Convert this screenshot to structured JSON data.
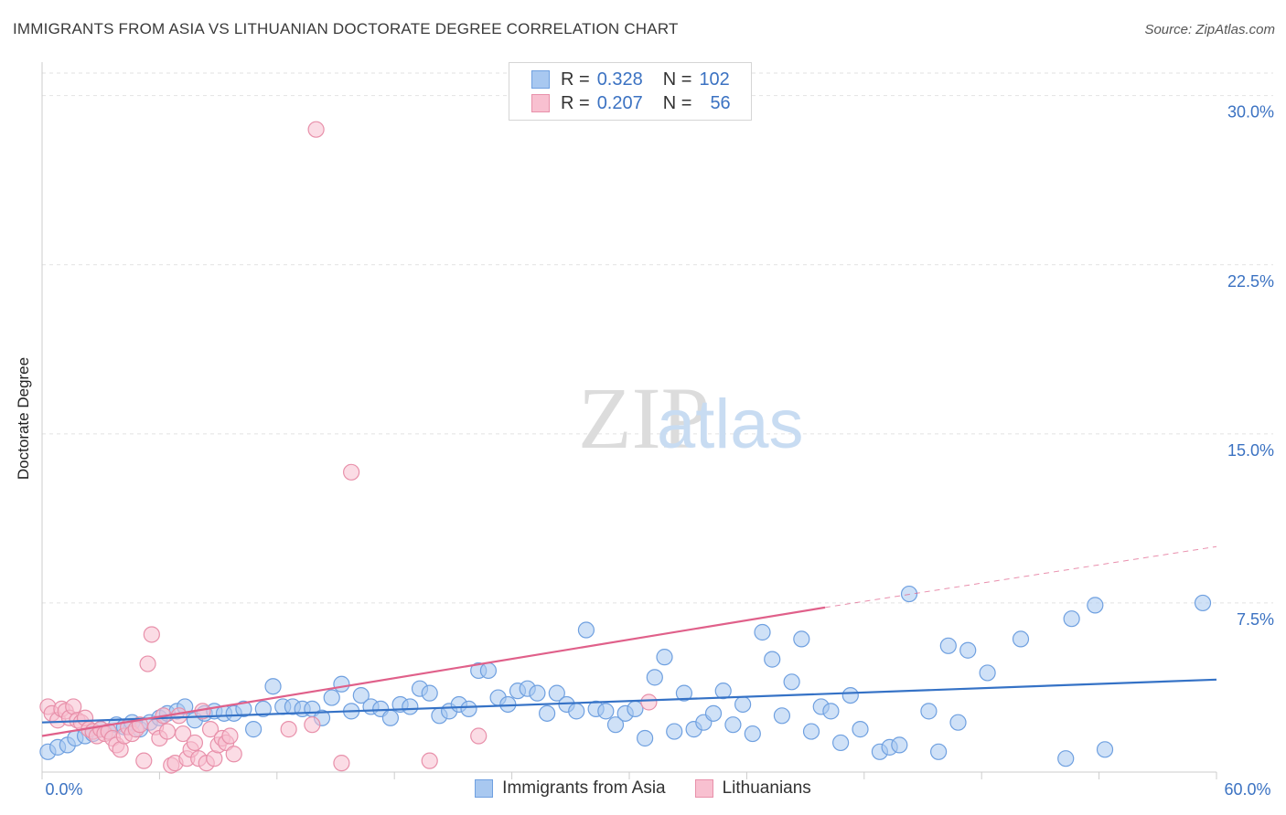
{
  "title": "IMMIGRANTS FROM ASIA VS LITHUANIAN DOCTORATE DEGREE CORRELATION CHART",
  "source": "Source: ZipAtlas.com",
  "watermark": {
    "zip": "ZIP",
    "atlas": "atlas"
  },
  "legend": {
    "r_label": "R =",
    "n_label": "N =",
    "series": [
      {
        "r": "0.328",
        "n": "102",
        "color": "#a8c8f0",
        "border": "#6fa0e0"
      },
      {
        "r": "0.207",
        "n": "56",
        "color": "#f8c0d0",
        "border": "#e890aa"
      }
    ]
  },
  "chart_data": {
    "type": "scatter",
    "title": "IMMIGRANTS FROM ASIA VS LITHUANIAN DOCTORATE DEGREE CORRELATION CHART",
    "xlabel": "",
    "ylabel": "Doctorate Degree",
    "xlim": [
      0,
      60
    ],
    "ylim": [
      0,
      31
    ],
    "x_tick_labels": [
      "0.0%",
      "60.0%"
    ],
    "y_ticks": [
      7.5,
      15.0,
      22.5,
      30.0
    ],
    "y_tick_labels": [
      "7.5%",
      "15.0%",
      "22.5%",
      "30.0%"
    ],
    "grid": true,
    "series": [
      {
        "name": "Immigrants from Asia",
        "color": "#6fa0e0",
        "fill": "#a8c8f0",
        "trend": {
          "x0": 0,
          "y0": 2.2,
          "x1": 60,
          "y1": 4.1,
          "color": "#3572c6"
        },
        "points": [
          [
            0.3,
            0.9
          ],
          [
            0.8,
            1.1
          ],
          [
            1.3,
            1.2
          ],
          [
            1.7,
            1.5
          ],
          [
            2.2,
            1.6
          ],
          [
            2.6,
            1.7
          ],
          [
            3.0,
            1.9
          ],
          [
            3.4,
            1.8
          ],
          [
            3.8,
            2.1
          ],
          [
            4.2,
            2.0
          ],
          [
            4.6,
            2.2
          ],
          [
            5.0,
            1.9
          ],
          [
            5.5,
            2.2
          ],
          [
            6.0,
            2.4
          ],
          [
            6.4,
            2.6
          ],
          [
            6.9,
            2.7
          ],
          [
            7.3,
            2.9
          ],
          [
            7.8,
            2.3
          ],
          [
            8.3,
            2.6
          ],
          [
            8.8,
            2.7
          ],
          [
            9.3,
            2.6
          ],
          [
            9.8,
            2.6
          ],
          [
            10.3,
            2.8
          ],
          [
            10.8,
            1.9
          ],
          [
            11.3,
            2.8
          ],
          [
            11.8,
            3.8
          ],
          [
            12.3,
            2.9
          ],
          [
            12.8,
            2.9
          ],
          [
            13.3,
            2.8
          ],
          [
            13.8,
            2.8
          ],
          [
            14.3,
            2.4
          ],
          [
            14.8,
            3.3
          ],
          [
            15.3,
            3.9
          ],
          [
            15.8,
            2.7
          ],
          [
            16.3,
            3.4
          ],
          [
            16.8,
            2.9
          ],
          [
            17.3,
            2.8
          ],
          [
            17.8,
            2.4
          ],
          [
            18.3,
            3.0
          ],
          [
            18.8,
            2.9
          ],
          [
            19.3,
            3.7
          ],
          [
            19.8,
            3.5
          ],
          [
            20.3,
            2.5
          ],
          [
            20.8,
            2.7
          ],
          [
            21.3,
            3.0
          ],
          [
            21.8,
            2.8
          ],
          [
            22.3,
            4.5
          ],
          [
            22.8,
            4.5
          ],
          [
            23.3,
            3.3
          ],
          [
            23.8,
            3.0
          ],
          [
            24.3,
            3.6
          ],
          [
            24.8,
            3.7
          ],
          [
            25.3,
            3.5
          ],
          [
            25.8,
            2.6
          ],
          [
            26.3,
            3.5
          ],
          [
            26.8,
            3.0
          ],
          [
            27.3,
            2.7
          ],
          [
            27.8,
            6.3
          ],
          [
            28.3,
            2.8
          ],
          [
            28.8,
            2.7
          ],
          [
            29.3,
            2.1
          ],
          [
            29.8,
            2.6
          ],
          [
            30.3,
            2.8
          ],
          [
            30.8,
            1.5
          ],
          [
            31.3,
            4.2
          ],
          [
            31.8,
            5.1
          ],
          [
            32.3,
            1.8
          ],
          [
            32.8,
            3.5
          ],
          [
            33.3,
            1.9
          ],
          [
            33.8,
            2.2
          ],
          [
            34.3,
            2.6
          ],
          [
            34.8,
            3.6
          ],
          [
            35.3,
            2.1
          ],
          [
            35.8,
            3.0
          ],
          [
            36.3,
            1.7
          ],
          [
            36.8,
            6.2
          ],
          [
            37.3,
            5.0
          ],
          [
            37.8,
            2.5
          ],
          [
            38.3,
            4.0
          ],
          [
            38.8,
            5.9
          ],
          [
            39.3,
            1.8
          ],
          [
            39.8,
            2.9
          ],
          [
            40.3,
            2.7
          ],
          [
            40.8,
            1.3
          ],
          [
            41.3,
            3.4
          ],
          [
            41.8,
            1.9
          ],
          [
            42.8,
            0.9
          ],
          [
            43.3,
            1.1
          ],
          [
            43.8,
            1.2
          ],
          [
            44.3,
            7.9
          ],
          [
            45.3,
            2.7
          ],
          [
            45.8,
            0.9
          ],
          [
            46.3,
            5.6
          ],
          [
            46.8,
            2.2
          ],
          [
            47.3,
            5.4
          ],
          [
            48.3,
            4.4
          ],
          [
            50.0,
            5.9
          ],
          [
            52.3,
            0.6
          ],
          [
            52.6,
            6.8
          ],
          [
            53.8,
            7.4
          ],
          [
            54.3,
            1.0
          ],
          [
            59.3,
            7.5
          ]
        ]
      },
      {
        "name": "Lithuanians",
        "color": "#e890aa",
        "fill": "#f8c0d0",
        "trend": {
          "x0": 0,
          "y0": 1.6,
          "x1": 40,
          "y1": 7.3,
          "x2": 60,
          "y2": 10.0,
          "color": "#e0608a"
        },
        "points": [
          [
            0.3,
            2.9
          ],
          [
            0.5,
            2.6
          ],
          [
            0.8,
            2.3
          ],
          [
            1.0,
            2.8
          ],
          [
            1.2,
            2.7
          ],
          [
            1.4,
            2.4
          ],
          [
            1.6,
            2.9
          ],
          [
            1.8,
            2.3
          ],
          [
            2.0,
            2.2
          ],
          [
            2.2,
            2.4
          ],
          [
            2.4,
            1.9
          ],
          [
            2.6,
            1.8
          ],
          [
            2.8,
            1.6
          ],
          [
            3.0,
            1.9
          ],
          [
            3.2,
            1.7
          ],
          [
            3.4,
            1.8
          ],
          [
            3.6,
            1.5
          ],
          [
            3.8,
            1.2
          ],
          [
            4.0,
            1.0
          ],
          [
            4.2,
            1.6
          ],
          [
            4.4,
            2.0
          ],
          [
            4.6,
            1.7
          ],
          [
            4.8,
            1.9
          ],
          [
            5.0,
            2.1
          ],
          [
            5.2,
            0.5
          ],
          [
            5.4,
            4.8
          ],
          [
            5.6,
            6.1
          ],
          [
            5.8,
            2.0
          ],
          [
            6.0,
            1.5
          ],
          [
            6.2,
            2.5
          ],
          [
            6.4,
            1.8
          ],
          [
            6.6,
            0.3
          ],
          [
            6.8,
            0.4
          ],
          [
            7.0,
            2.5
          ],
          [
            7.2,
            1.7
          ],
          [
            7.4,
            0.6
          ],
          [
            7.6,
            1.0
          ],
          [
            7.8,
            1.3
          ],
          [
            8.0,
            0.6
          ],
          [
            8.2,
            2.7
          ],
          [
            8.4,
            0.4
          ],
          [
            8.6,
            1.9
          ],
          [
            8.8,
            0.6
          ],
          [
            9.0,
            1.2
          ],
          [
            9.2,
            1.5
          ],
          [
            9.4,
            1.3
          ],
          [
            9.6,
            1.6
          ],
          [
            9.8,
            0.8
          ],
          [
            12.6,
            1.9
          ],
          [
            13.8,
            2.1
          ],
          [
            14.0,
            28.5
          ],
          [
            15.3,
            0.4
          ],
          [
            15.8,
            13.3
          ],
          [
            19.8,
            0.5
          ],
          [
            22.3,
            1.6
          ],
          [
            31.0,
            3.1
          ]
        ]
      }
    ]
  },
  "bottom_legend": [
    {
      "label": "Immigrants from Asia"
    },
    {
      "label": "Lithuanians"
    }
  ]
}
